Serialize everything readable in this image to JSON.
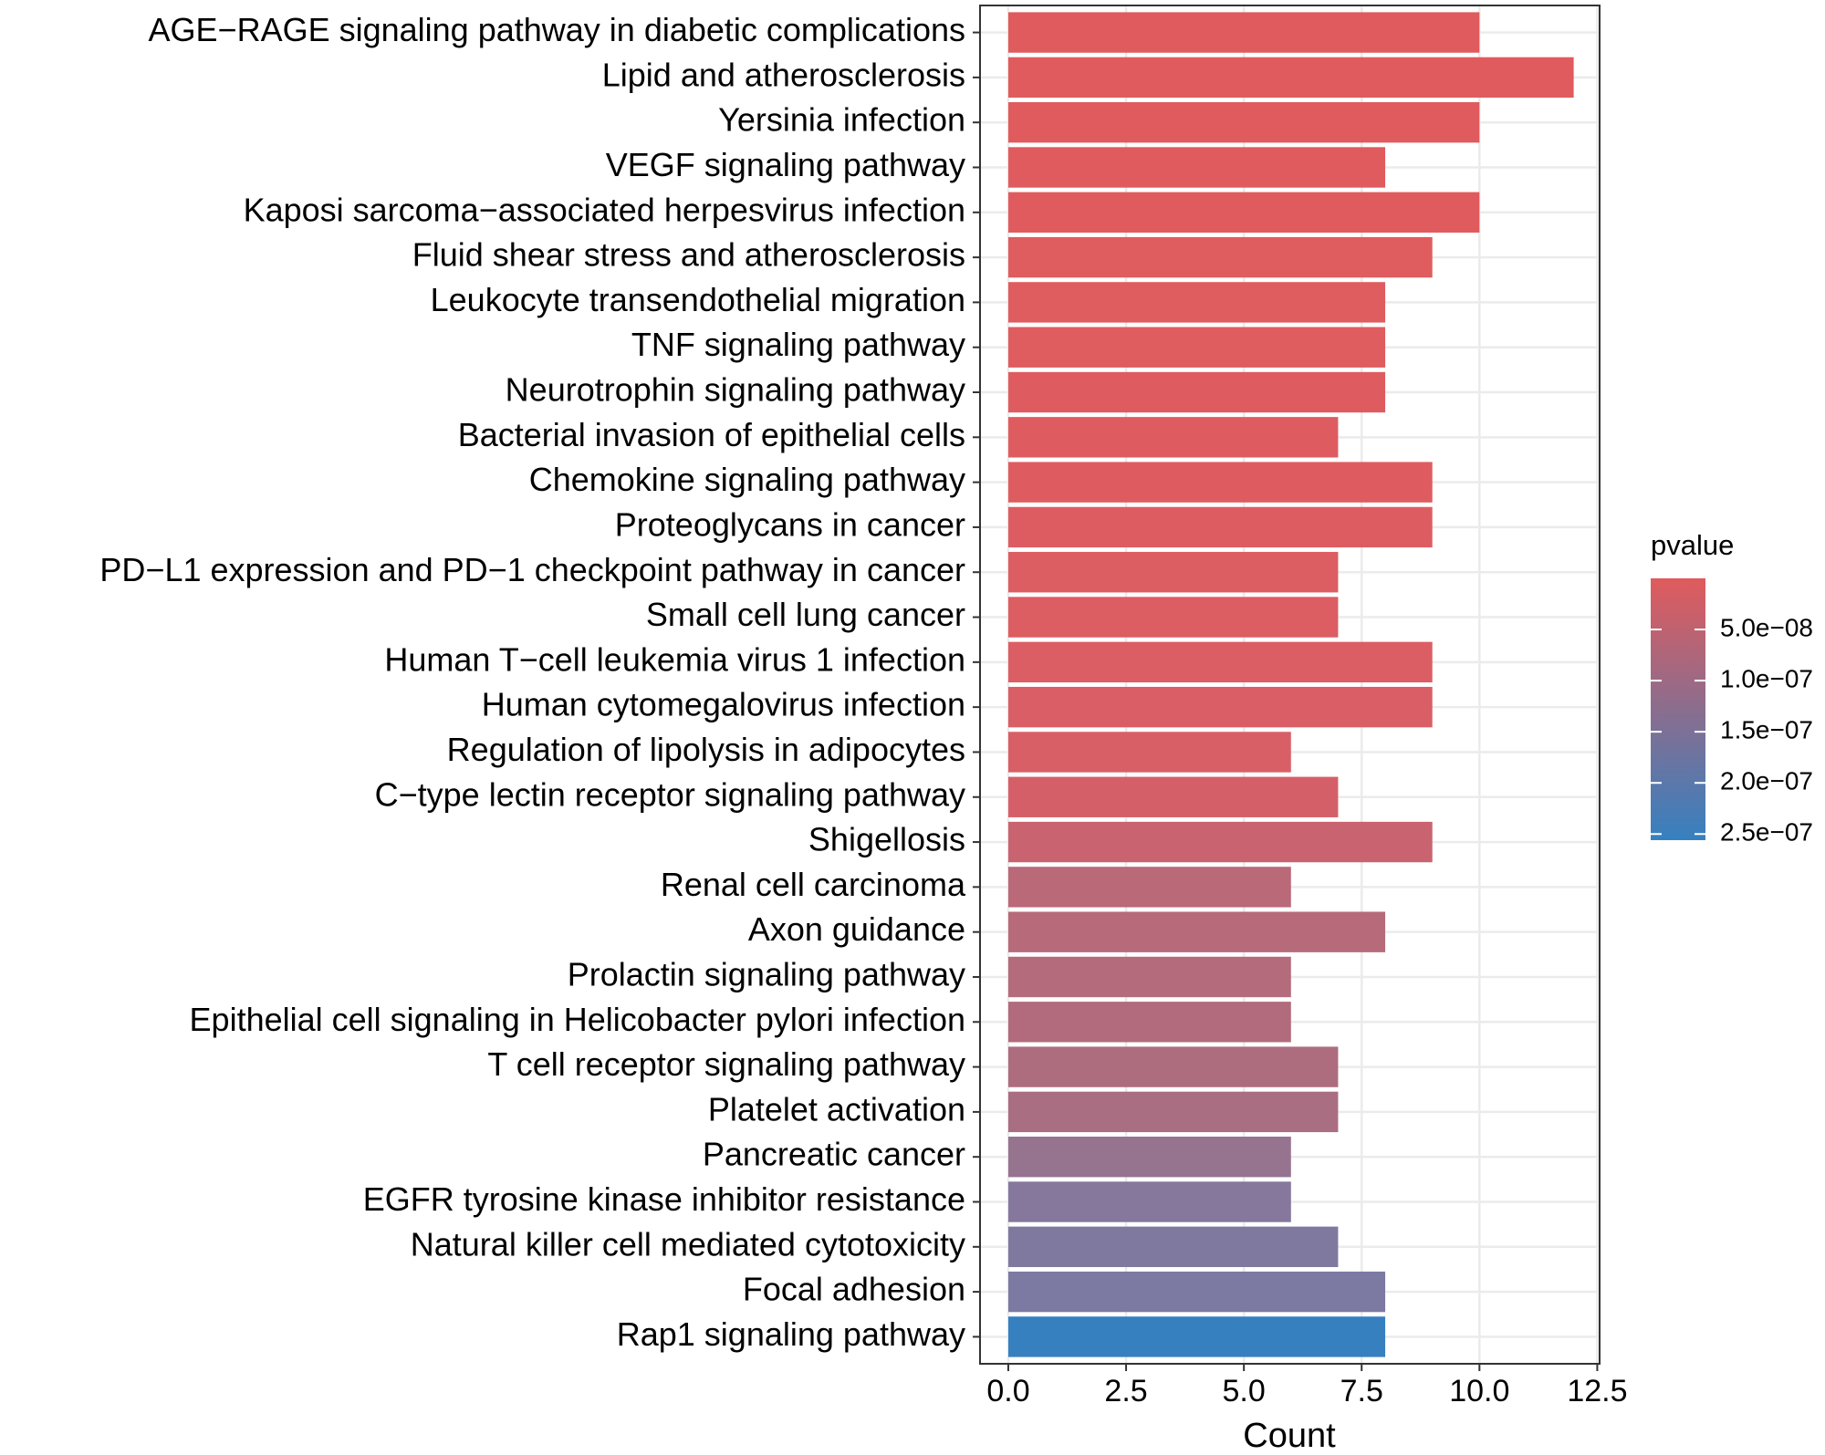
{
  "chart_data": {
    "type": "hbar",
    "x_label": "Count",
    "categories": [
      "AGE−RAGE signaling pathway in diabetic complications",
      "Lipid and atherosclerosis",
      "Yersinia infection",
      "VEGF signaling pathway",
      "Kaposi sarcoma−associated herpesvirus infection",
      "Fluid shear stress and atherosclerosis",
      "Leukocyte transendothelial migration",
      "TNF signaling pathway",
      "Neurotrophin signaling pathway",
      "Bacterial invasion of epithelial cells",
      "Chemokine signaling pathway",
      "Proteoglycans in cancer",
      "PD−L1 expression and PD−1 checkpoint pathway in cancer",
      "Small cell lung cancer",
      "Human T−cell leukemia virus 1 infection",
      "Human cytomegalovirus infection",
      "Regulation of lipolysis in adipocytes",
      "C−type lectin receptor signaling pathway",
      "Shigellosis",
      "Renal cell carcinoma",
      "Axon guidance",
      "Prolactin signaling pathway",
      "Epithelial cell signaling in Helicobacter pylori infection",
      "T cell receptor signaling pathway",
      "Platelet activation",
      "Pancreatic cancer",
      "EGFR tyrosine kinase inhibitor resistance",
      "Natural killer cell mediated cytotoxicity",
      "Focal adhesion",
      "Rap1 signaling pathway"
    ],
    "values": [
      10,
      12,
      10,
      8,
      10,
      9,
      8,
      8,
      8,
      7,
      9,
      9,
      7,
      7,
      9,
      9,
      6,
      7,
      9,
      6,
      8,
      6,
      6,
      7,
      7,
      6,
      6,
      7,
      8,
      8
    ],
    "colors": [
      "#e05b5d",
      "#e05b5d",
      "#e05b5d",
      "#e05b5e",
      "#e05b5e",
      "#df5c5f",
      "#df5c5f",
      "#df5c5f",
      "#de5c60",
      "#de5c60",
      "#de5c60",
      "#dd5c61",
      "#dc5d62",
      "#dc5d62",
      "#da5e64",
      "#d95e65",
      "#d85f66",
      "#d55f68",
      "#c9636f",
      "#b96978",
      "#b76a79",
      "#b46b7b",
      "#b26b7c",
      "#ad6d7f",
      "#aa6e82",
      "#967490",
      "#85789c",
      "#80799f",
      "#7c7aa2",
      "#3680c0"
    ],
    "xlim": [
      -0.6,
      12.55
    ],
    "xticks": [
      {
        "value": 0,
        "label": "0.0"
      },
      {
        "value": 2.5,
        "label": "2.5"
      },
      {
        "value": 5,
        "label": "5.0"
      },
      {
        "value": 7.5,
        "label": "7.5"
      },
      {
        "value": 10,
        "label": "10.0"
      },
      {
        "value": 12.5,
        "label": "12.5"
      }
    ],
    "grid": true,
    "colorbar": {
      "title": "pvalue",
      "lim": [
        0,
        2.56e-07
      ],
      "colors": [
        "#e05b5d",
        "#3680c0"
      ],
      "ticks": [
        {
          "value": 5e-08,
          "label": "5.0e−08"
        },
        {
          "value": 1e-07,
          "label": "1.0e−07"
        },
        {
          "value": 1.5e-07,
          "label": "1.5e−07"
        },
        {
          "value": 2e-07,
          "label": "2.0e−07"
        },
        {
          "value": 2.5e-07,
          "label": "2.5e−07"
        }
      ]
    }
  }
}
